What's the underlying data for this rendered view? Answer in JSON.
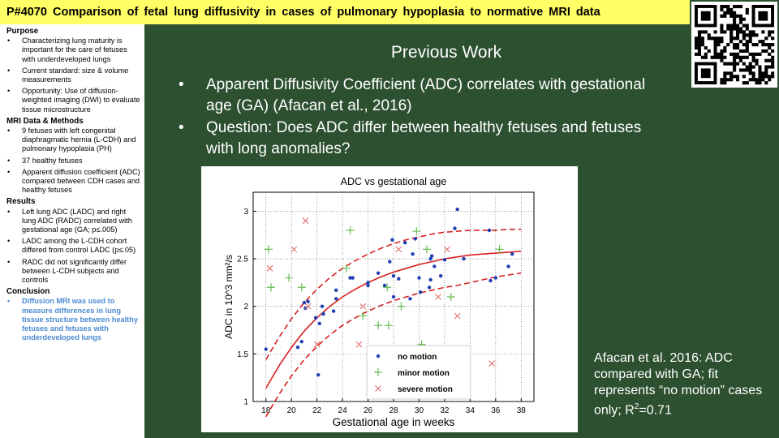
{
  "header": {
    "title": "P#4070  Comparison  of  fetal  lung  diffusivity  in  cases  of  pulmonary  hypoplasia  to  normative  MRI  data"
  },
  "qr": {
    "icon": "qr-code-icon"
  },
  "sidebar": {
    "sections": [
      {
        "heading": "Purpose",
        "style": "normal",
        "items": [
          "Characterizing lung maturity is important  for the care of fetuses with underdeveloped lungs",
          "Current standard: size & volume measurements",
          "Opportunity: Use of diffusion-weighted imaging (DWI) to evaluate tissue microstructure"
        ]
      },
      {
        "heading": "MRI Data & Methods",
        "style": "normal",
        "items": [
          "9 fetuses with left congenital diaphragmatic hernia (L-CDH) and pulmonary hypoplasia (PH)",
          "37 healthy fetuses",
          "Apparent diffusion coefficient (ADC) compared between CDH  cases and healthy fetuses"
        ]
      },
      {
        "heading": "Results",
        "style": "normal",
        "items": [
          "Left lung ADC (LADC) and right lung ADC (RADC) correlated with gestational age (GA; p≤.005)",
          "LADC among the L-CDH cohort differed from control LADC (p≤.05)",
          "RADC did not significantly differ between L-CDH subjects and controls"
        ]
      },
      {
        "heading": "Conclusion",
        "style": "highlight",
        "items": [
          "Diffusion MRI was used to measure differences in lung tissue structure between healthy fetuses and fetuses with underdeveloped lungs"
        ]
      }
    ]
  },
  "main": {
    "heading": "Previous Work",
    "bullets": [
      "Apparent Diffusivity Coefficient (ADC) correlates with gestational age (GA) (Afacan et al., 2016)",
      "Question: Does ADC differ between healthy fetuses and fetuses with long anomalies?"
    ],
    "caption_main": "Afacan et al. 2016: ADC compared with GA; fit represents “no motion” cases only; R",
    "caption_sup": "2",
    "caption_end": "=0.71"
  },
  "colors": {
    "background": "#2d5030",
    "title_bar": "#ffff66",
    "conclusion_text": "#4b8bd2",
    "no_motion": "#1f3fb3",
    "minor_motion": "#66bb55",
    "severe_motion": "#e07070",
    "fit_line": "#d62020"
  },
  "chart_data": {
    "type": "scatter",
    "title": "ADC vs gestational age",
    "xlabel": "Gestational age in weeks",
    "ylabel": "ADC in 10^3 mm²/s",
    "xlim": [
      17,
      39
    ],
    "ylim": [
      1,
      3.2
    ],
    "x_ticks": [
      18,
      20,
      22,
      24,
      26,
      28,
      30,
      32,
      34,
      36,
      38
    ],
    "y_ticks": [
      1,
      1.5,
      2,
      2.5,
      3
    ],
    "grid": true,
    "legend": {
      "position": "bottom-center",
      "entries": [
        "no motion",
        "minor motion",
        "severe motion"
      ]
    },
    "series": [
      {
        "name": "no motion",
        "marker": "dot",
        "points": [
          [
            18.0,
            1.55
          ],
          [
            20.5,
            1.57
          ],
          [
            20.8,
            1.63
          ],
          [
            21.0,
            2.04
          ],
          [
            21.1,
            1.98
          ],
          [
            21.3,
            2.05
          ],
          [
            21.9,
            1.88
          ],
          [
            22.1,
            1.28
          ],
          [
            22.2,
            1.82
          ],
          [
            22.4,
            2.0
          ],
          [
            22.5,
            1.92
          ],
          [
            23.3,
            1.95
          ],
          [
            23.5,
            2.08
          ],
          [
            23.5,
            2.17
          ],
          [
            24.6,
            2.3
          ],
          [
            24.8,
            2.3
          ],
          [
            26.0,
            2.25
          ],
          [
            26.0,
            2.22
          ],
          [
            26.8,
            2.35
          ],
          [
            27.3,
            2.22
          ],
          [
            27.7,
            2.47
          ],
          [
            27.9,
            2.7
          ],
          [
            28.0,
            2.32
          ],
          [
            28.0,
            2.1
          ],
          [
            28.4,
            2.29
          ],
          [
            28.9,
            2.67
          ],
          [
            29.3,
            2.08
          ],
          [
            29.5,
            2.55
          ],
          [
            29.7,
            2.71
          ],
          [
            30.0,
            2.3
          ],
          [
            30.1,
            2.15
          ],
          [
            30.8,
            2.2
          ],
          [
            30.9,
            2.28
          ],
          [
            30.9,
            2.5
          ],
          [
            31.0,
            2.53
          ],
          [
            31.2,
            2.42
          ],
          [
            31.7,
            2.32
          ],
          [
            32.0,
            2.49
          ],
          [
            32.8,
            2.82
          ],
          [
            33.0,
            3.02
          ],
          [
            33.5,
            2.5
          ],
          [
            35.5,
            2.8
          ],
          [
            35.6,
            2.27
          ],
          [
            36.0,
            2.3
          ],
          [
            37.0,
            2.42
          ],
          [
            37.3,
            2.55
          ]
        ]
      },
      {
        "name": "minor motion",
        "marker": "plus",
        "points": [
          [
            18.2,
            2.6
          ],
          [
            18.4,
            2.2
          ],
          [
            19.8,
            2.3
          ],
          [
            20.8,
            2.2
          ],
          [
            24.3,
            2.4
          ],
          [
            24.6,
            2.8
          ],
          [
            25.6,
            1.9
          ],
          [
            26.8,
            1.8
          ],
          [
            27.5,
            2.2
          ],
          [
            27.6,
            1.8
          ],
          [
            28.6,
            2.0
          ],
          [
            29.8,
            2.79
          ],
          [
            30.2,
            1.6
          ],
          [
            30.6,
            2.6
          ],
          [
            32.5,
            2.1
          ],
          [
            36.3,
            2.6
          ]
        ]
      },
      {
        "name": "severe motion",
        "marker": "cross",
        "points": [
          [
            18.3,
            2.4
          ],
          [
            20.2,
            2.6
          ],
          [
            21.1,
            2.9
          ],
          [
            21.3,
            2.0
          ],
          [
            22.0,
            1.6
          ],
          [
            25.3,
            1.6
          ],
          [
            25.6,
            2.0
          ],
          [
            28.4,
            2.6
          ],
          [
            31.5,
            2.1
          ],
          [
            32.2,
            2.6
          ],
          [
            33.0,
            1.9
          ],
          [
            35.7,
            1.4
          ]
        ]
      }
    ],
    "fit": {
      "x": [
        18,
        19,
        20,
        21,
        22,
        23,
        24,
        25,
        26,
        27,
        28,
        29,
        30,
        31,
        32,
        33,
        34,
        35,
        36,
        37,
        38
      ],
      "y": [
        1.14,
        1.37,
        1.57,
        1.74,
        1.88,
        2.0,
        2.1,
        2.18,
        2.25,
        2.31,
        2.36,
        2.4,
        2.44,
        2.47,
        2.5,
        2.52,
        2.54,
        2.55,
        2.56,
        2.57,
        2.58
      ],
      "upper": [
        1.44,
        1.67,
        1.87,
        2.04,
        2.18,
        2.3,
        2.4,
        2.48,
        2.55,
        2.61,
        2.66,
        2.7,
        2.73,
        2.76,
        2.78,
        2.79,
        2.8,
        2.8,
        2.8,
        2.81,
        2.81
      ],
      "lower": [
        0.84,
        1.07,
        1.27,
        1.44,
        1.58,
        1.7,
        1.8,
        1.88,
        1.95,
        2.01,
        2.06,
        2.1,
        2.14,
        2.17,
        2.2,
        2.22,
        2.25,
        2.28,
        2.31,
        2.33,
        2.35
      ]
    }
  }
}
